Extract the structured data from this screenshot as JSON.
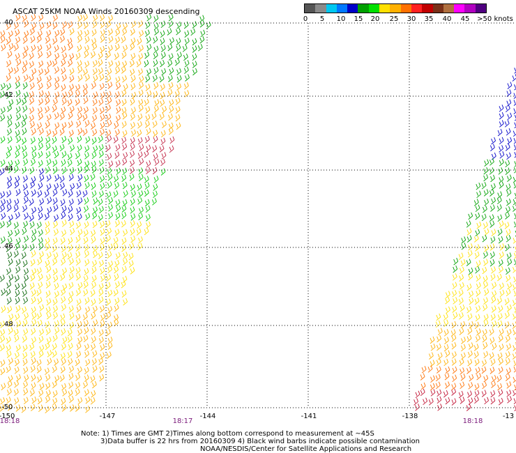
{
  "title": "ASCAT 25KM NOAA Winds 20160309 descending",
  "legend": {
    "colors": [
      "#555555",
      "#8a8a8a",
      "#00c8f0",
      "#0078ff",
      "#0000c8",
      "#00a000",
      "#00e000",
      "#ffe000",
      "#ffb000",
      "#ff7000",
      "#ff2020",
      "#c00000",
      "#7a3018",
      "#b07040",
      "#ff00ff",
      "#b000c0",
      "#500080"
    ],
    "labels": [
      "0",
      "5",
      "10",
      "15",
      "20",
      "25",
      "30",
      "35",
      "40",
      "45",
      ">50 knots"
    ]
  },
  "lon_labels": [
    "-150",
    "-147",
    "-144",
    "-141",
    "-138",
    "-13"
  ],
  "lat_labels": [
    "40",
    "42",
    "44",
    "46",
    "48",
    "-50"
  ],
  "time_labels": [
    "18:18",
    "18:17",
    "18:18"
  ],
  "notes": {
    "line1": "Note: 1) Times are GMT 2)Times along bottom correspond to measurement at ~45S",
    "line2": "3)Data buffer is 22 hrs from 20160309 4) Black wind barbs indicate possible contamination",
    "line3": "NOAA/NESDIS/Center for Satellite Applications and Research"
  }
}
